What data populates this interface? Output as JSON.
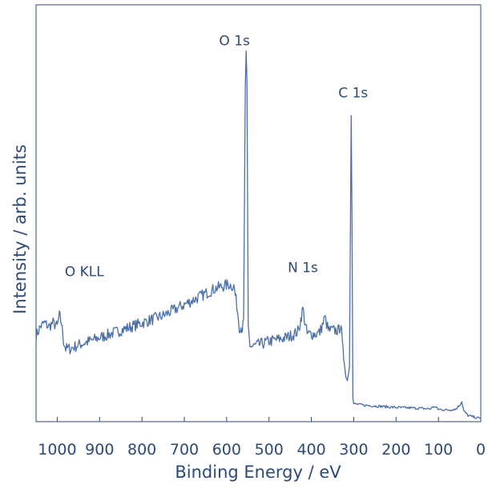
{
  "chart_data": {
    "type": "line",
    "title": "",
    "xlabel": "Binding Energy / eV",
    "ylabel": "Intensity / arb. units",
    "xlim": [
      1050,
      0
    ],
    "ylim": [
      0,
      100
    ],
    "x_reversed": true,
    "x_ticks": [
      1000,
      900,
      800,
      700,
      600,
      500,
      400,
      300,
      200,
      100,
      0
    ],
    "x_tick_labels": [
      "1000",
      "900",
      "800",
      "700",
      "600",
      "500",
      "400",
      "300",
      "200",
      "100",
      "0"
    ],
    "y_ticks_shown": false,
    "grid": false,
    "line_color": "#4a6fa8",
    "annotations": [
      {
        "text": "O KLL",
        "x": 970,
        "y": 34
      },
      {
        "text": "O 1s",
        "x": 555,
        "y": 99
      },
      {
        "text": "N 1s",
        "x": 420,
        "y": 35
      },
      {
        "text": "C 1s",
        "x": 305,
        "y": 84
      }
    ],
    "series": [
      {
        "points": [
          [
            1050,
            22.5
          ],
          [
            1040,
            25
          ],
          [
            1030,
            26
          ],
          [
            1020,
            25
          ],
          [
            1010,
            26
          ],
          [
            1000,
            25
          ],
          [
            995,
            28
          ],
          [
            990,
            26
          ],
          [
            985,
            21
          ],
          [
            980,
            19
          ],
          [
            970,
            19
          ],
          [
            960,
            19.5
          ],
          [
            950,
            20
          ],
          [
            925,
            21
          ],
          [
            900,
            22
          ],
          [
            875,
            23
          ],
          [
            850,
            24
          ],
          [
            825,
            25
          ],
          [
            800,
            26
          ],
          [
            775,
            27
          ],
          [
            750,
            28
          ],
          [
            725,
            29.5
          ],
          [
            700,
            31
          ],
          [
            675,
            32.5
          ],
          [
            650,
            34
          ],
          [
            625,
            35.5
          ],
          [
            610,
            36
          ],
          [
            595,
            36.5
          ],
          [
            583,
            36
          ],
          [
            576,
            31
          ],
          [
            570,
            25
          ],
          [
            566,
            25
          ],
          [
            563,
            24.5
          ],
          [
            560,
            26
          ],
          [
            556,
            90
          ],
          [
            554,
            99
          ],
          [
            552,
            90
          ],
          [
            549,
            25
          ],
          [
            545,
            20
          ],
          [
            540,
            19.5
          ],
          [
            500,
            21
          ],
          [
            460,
            22
          ],
          [
            440,
            23
          ],
          [
            430,
            24
          ],
          [
            425,
            27
          ],
          [
            420,
            30
          ],
          [
            415,
            26
          ],
          [
            410,
            23
          ],
          [
            390,
            23
          ],
          [
            380,
            23.5
          ],
          [
            372,
            26
          ],
          [
            368,
            27.5
          ],
          [
            360,
            24
          ],
          [
            350,
            24
          ],
          [
            335,
            24
          ],
          [
            330,
            26
          ],
          [
            327,
            20
          ],
          [
            322,
            15
          ],
          [
            318,
            11
          ],
          [
            315,
            10.5
          ],
          [
            310,
            14
          ],
          [
            308,
            50
          ],
          [
            306,
            84
          ],
          [
            304,
            55
          ],
          [
            302,
            5.5
          ],
          [
            300,
            4
          ],
          [
            275,
            3.6
          ],
          [
            250,
            3.4
          ],
          [
            200,
            3
          ],
          [
            150,
            2.8
          ],
          [
            120,
            2.6
          ],
          [
            110,
            3.3
          ],
          [
            100,
            2.5
          ],
          [
            80,
            2.3
          ],
          [
            60,
            2.5
          ],
          [
            50,
            3.6
          ],
          [
            45,
            4.6
          ],
          [
            40,
            2
          ],
          [
            35,
            1.4
          ],
          [
            30,
            0.8
          ],
          [
            20,
            0.5
          ],
          [
            10,
            0.2
          ],
          [
            0,
            0
          ]
        ]
      }
    ]
  }
}
